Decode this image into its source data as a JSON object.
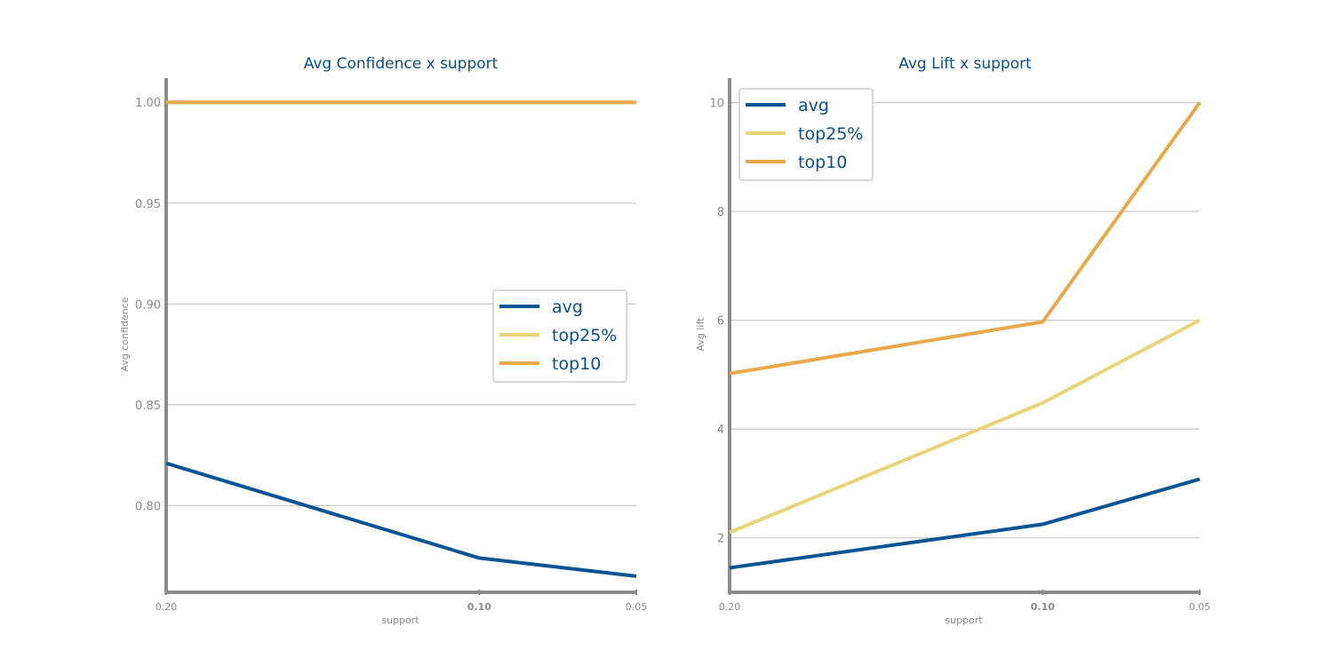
{
  "colors": {
    "avg": "#0a5493",
    "top25%": "#e8d57a",
    "top10": "#e6aa4c",
    "grid": "#cccccc",
    "axis": "#8c8c8c",
    "title": "#0a4f8a"
  },
  "chart_data": [
    {
      "type": "line",
      "title": "Avg Confidence x support",
      "xlabel": "support",
      "ylabel": "Avg confidence",
      "categories": [
        "0.20",
        "0.10",
        "0.05"
      ],
      "x": [
        0.2,
        0.1,
        0.05
      ],
      "yticks": [
        "0.80",
        "0.85",
        "0.90",
        "0.95",
        "1.00"
      ],
      "ylim": [
        0.757,
        1.012
      ],
      "grid": true,
      "legend_position": "center-right",
      "series": [
        {
          "name": "avg",
          "values": [
            0.821,
            0.774,
            0.765
          ]
        },
        {
          "name": "top25%",
          "values": [
            1.0,
            1.0,
            1.0
          ]
        },
        {
          "name": "top10",
          "values": [
            1.0,
            1.0,
            1.0
          ]
        }
      ]
    },
    {
      "type": "line",
      "title": "Avg Lift x support",
      "xlabel": "support",
      "ylabel": "Avg lift",
      "categories": [
        "0.20",
        "0.10",
        "0.05"
      ],
      "x": [
        0.2,
        0.1,
        0.05
      ],
      "yticks": [
        "2",
        "4",
        "6",
        "8",
        "10"
      ],
      "ylim": [
        1.0,
        10.45
      ],
      "grid": true,
      "legend_position": "top-left",
      "series": [
        {
          "name": "avg",
          "values": [
            1.45,
            2.25,
            3.08
          ]
        },
        {
          "name": "top25%",
          "values": [
            2.1,
            4.48,
            6.0
          ]
        },
        {
          "name": "top10",
          "values": [
            5.02,
            5.97,
            10.0
          ]
        }
      ]
    }
  ]
}
